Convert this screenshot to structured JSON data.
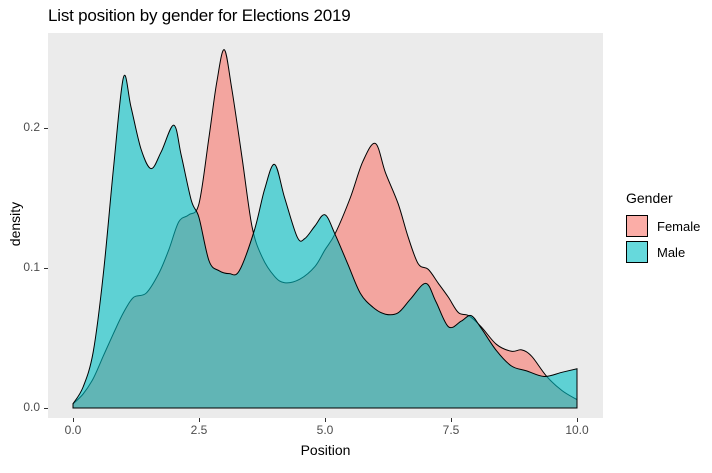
{
  "title": "List position by gender for Elections 2019",
  "x_axis": {
    "label": "Position",
    "ticks": [
      "0.0",
      "2.5",
      "5.0",
      "7.5",
      "10.0"
    ],
    "tick_values": [
      0,
      2.5,
      5,
      7.5,
      10
    ]
  },
  "y_axis": {
    "label": "density",
    "ticks": [
      "0.0",
      "0.1",
      "0.2"
    ],
    "tick_values": [
      0,
      0.1,
      0.2
    ]
  },
  "legend": {
    "title": "Gender",
    "entries": [
      {
        "label": "Female",
        "color": "#F8766D"
      },
      {
        "label": "Male",
        "color": "#00BFC4"
      }
    ]
  },
  "colors": {
    "panel_bg": "#EBEBEB",
    "outline": "#000000",
    "tick_text": "#4D4D4D",
    "female_fill": "#F8766D",
    "male_fill": "#00BFC4",
    "fill_alpha": 0.6
  },
  "chart_data": {
    "type": "area",
    "subtype": "overlapping-density",
    "title": "List position by gender for Elections 2019",
    "xlabel": "Position",
    "ylabel": "density",
    "xlim": [
      -0.5,
      10.5
    ],
    "ylim": [
      0,
      0.268
    ],
    "grid": false,
    "legend_position": "right",
    "series": [
      {
        "name": "Female",
        "fill": "#F8766D",
        "alpha": 0.6,
        "x": [
          0,
          0.2,
          0.4,
          0.6,
          0.8,
          1.0,
          1.2,
          1.45,
          1.7,
          1.9,
          2.1,
          2.3,
          2.5,
          2.7,
          2.85,
          3.0,
          3.15,
          3.35,
          3.55,
          3.75,
          4.0,
          4.2,
          4.5,
          4.8,
          5.0,
          5.2,
          5.5,
          5.75,
          6.0,
          6.2,
          6.45,
          6.65,
          6.85,
          7.05,
          7.25,
          7.45,
          7.65,
          7.85,
          8.1,
          8.4,
          8.7,
          8.9,
          9.1,
          9.4,
          9.7,
          10.0
        ],
        "y": [
          0.003,
          0.01,
          0.021,
          0.037,
          0.053,
          0.068,
          0.079,
          0.082,
          0.096,
          0.113,
          0.133,
          0.138,
          0.146,
          0.194,
          0.232,
          0.256,
          0.228,
          0.18,
          0.13,
          0.108,
          0.094,
          0.0895,
          0.092,
          0.101,
          0.113,
          0.1245,
          0.15,
          0.176,
          0.189,
          0.168,
          0.146,
          0.122,
          0.103,
          0.099,
          0.089,
          0.079,
          0.068,
          0.066,
          0.058,
          0.0455,
          0.0405,
          0.0415,
          0.037,
          0.0225,
          0.0125,
          0.006
        ]
      },
      {
        "name": "Male",
        "fill": "#00BFC4",
        "alpha": 0.6,
        "x": [
          0,
          0.2,
          0.4,
          0.6,
          0.8,
          1.0,
          1.15,
          1.35,
          1.55,
          1.75,
          2.0,
          2.15,
          2.35,
          2.5,
          2.7,
          2.9,
          3.1,
          3.3,
          3.6,
          3.8,
          4.0,
          4.2,
          4.45,
          4.6,
          4.8,
          5.0,
          5.2,
          5.45,
          5.7,
          5.95,
          6.2,
          6.45,
          6.7,
          7.0,
          7.2,
          7.45,
          7.7,
          7.9,
          8.1,
          8.4,
          8.7,
          9.0,
          9.35,
          9.7,
          10.0
        ],
        "y": [
          0.003,
          0.015,
          0.04,
          0.095,
          0.17,
          0.236,
          0.215,
          0.185,
          0.171,
          0.183,
          0.202,
          0.18,
          0.148,
          0.136,
          0.105,
          0.098,
          0.096,
          0.098,
          0.127,
          0.156,
          0.174,
          0.15,
          0.122,
          0.121,
          0.13,
          0.138,
          0.124,
          0.103,
          0.082,
          0.072,
          0.067,
          0.068,
          0.078,
          0.089,
          0.076,
          0.058,
          0.062,
          0.066,
          0.057,
          0.041,
          0.03,
          0.0265,
          0.0225,
          0.0255,
          0.028
        ]
      }
    ]
  }
}
